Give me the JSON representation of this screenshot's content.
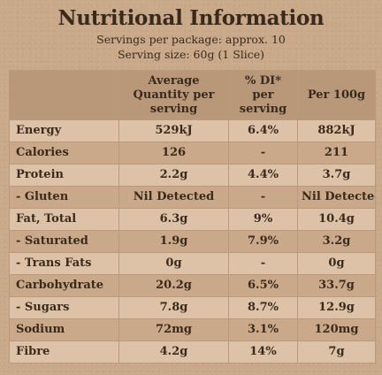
{
  "title": "Nutritional Information",
  "servings_per_package": "Servings per package: approx. 10",
  "serving_size": "Serving size: 60g (1 Slice)",
  "table": {
    "headers": [
      "",
      "Average Quantity per serving",
      "% DI* per serving",
      "Per 100g"
    ],
    "rows": [
      [
        "Energy",
        "529kJ",
        "6.4%",
        "882kJ"
      ],
      [
        "Calories",
        "126",
        "-",
        "211"
      ],
      [
        "Protein",
        "2.2g",
        "4.4%",
        "3.7g"
      ],
      [
        "- Gluten",
        "Nil Detected",
        "-",
        "Nil Detected"
      ],
      [
        "Fat, Total",
        "6.3g",
        "9%",
        "10.4g"
      ],
      [
        "- Saturated",
        "1.9g",
        "7.9%",
        "3.2g"
      ],
      [
        "- Trans Fats",
        "0g",
        "-",
        "0g"
      ],
      [
        "Carbohydrate",
        "20.2g",
        "6.5%",
        "33.7g"
      ],
      [
        "- Sugars",
        "7.8g",
        "8.7%",
        "12.9g"
      ],
      [
        "Sodium",
        "72mg",
        "3.1%",
        "120mg"
      ],
      [
        "Fibre",
        "4.2g",
        "14%",
        "7g"
      ]
    ]
  },
  "colors": {
    "background": "#c9a989",
    "row_light": "#ddc2a7",
    "header_bg": "#b89879",
    "text": "#3a2a1c"
  }
}
